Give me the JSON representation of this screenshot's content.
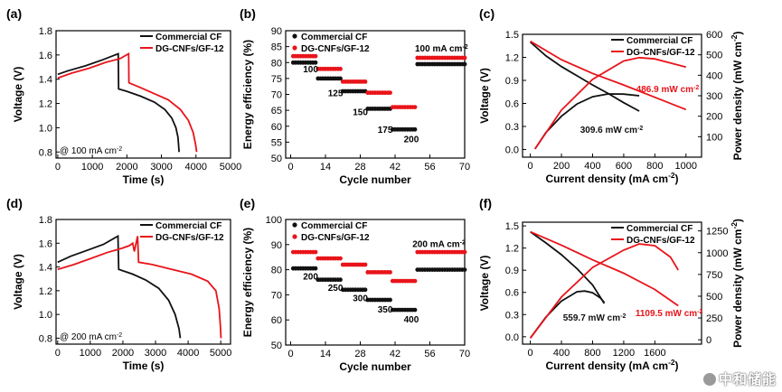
{
  "colors": {
    "black": "#111111",
    "red": "#e8141a"
  },
  "watermark": "中和储能",
  "chart_data": [
    {
      "id": "a",
      "panel_label": "(a)",
      "type": "line",
      "xlabel": "Time (s)",
      "ylabel": "Voltage (V)",
      "xlim": [
        -50,
        5000
      ],
      "ylim": [
        0.75,
        1.8
      ],
      "xticks": [
        0,
        1000,
        2000,
        3000,
        4000,
        5000
      ],
      "yticks": [
        0.8,
        1.0,
        1.2,
        1.4,
        1.6,
        1.8
      ],
      "ytick_labels": [
        "0.8",
        "1.0",
        "1.2",
        "1.4",
        "1.6",
        "1.8"
      ],
      "annotation": "@ 100 mA cm",
      "annotation_sup": "-2",
      "legend": {
        "position": "top-right",
        "entries": [
          "Commercial CF",
          "DG-CNFs/GF-12"
        ]
      },
      "series": [
        {
          "name": "Commercial CF",
          "color": "black",
          "points": [
            [
              0,
              1.44
            ],
            [
              300,
              1.47
            ],
            [
              800,
              1.51
            ],
            [
              1300,
              1.56
            ],
            [
              1750,
              1.61
            ],
            [
              1760,
              1.32
            ],
            [
              2000,
              1.3
            ],
            [
              2400,
              1.26
            ],
            [
              2800,
              1.21
            ],
            [
              3100,
              1.15
            ],
            [
              3300,
              1.08
            ],
            [
              3420,
              1.0
            ],
            [
              3480,
              0.92
            ],
            [
              3510,
              0.8
            ]
          ]
        },
        {
          "name": "DG-CNFs/GF-12",
          "color": "red",
          "points": [
            [
              0,
              1.41
            ],
            [
              400,
              1.45
            ],
            [
              900,
              1.49
            ],
            [
              1400,
              1.54
            ],
            [
              1800,
              1.57
            ],
            [
              2050,
              1.61
            ],
            [
              2060,
              1.37
            ],
            [
              2400,
              1.33
            ],
            [
              2800,
              1.28
            ],
            [
              3200,
              1.23
            ],
            [
              3550,
              1.15
            ],
            [
              3780,
              1.06
            ],
            [
              3920,
              0.96
            ],
            [
              3990,
              0.86
            ],
            [
              4020,
              0.8
            ]
          ]
        }
      ]
    },
    {
      "id": "b",
      "panel_label": "(b)",
      "type": "scatter",
      "xlabel": "Cycle number",
      "ylabel": "Energy efficiency (%)",
      "xlim": [
        -2,
        70
      ],
      "ylim": [
        50,
        90
      ],
      "xticks": [
        0,
        14,
        28,
        42,
        56,
        70
      ],
      "yticks": [
        50,
        55,
        60,
        65,
        70,
        75,
        80,
        85,
        90
      ],
      "legend": {
        "position": "top-left",
        "entries": [
          "Commercial CF",
          "DG-CNFs/GF-12"
        ]
      },
      "annotations": [
        {
          "text": "100",
          "x": 5,
          "y": 77
        },
        {
          "text": "125",
          "x": 15,
          "y": 69.5
        },
        {
          "text": "150",
          "x": 25,
          "y": 63.5
        },
        {
          "text": "175",
          "x": 35,
          "y": 58
        },
        {
          "text": "200",
          "x": 45.5,
          "y": 55
        },
        {
          "text": "100 mA cm",
          "sup": "-2",
          "x": 50,
          "y": 83.5
        }
      ],
      "groups": [
        {
          "x_start": 1,
          "x_end": 10,
          "black": 80.0,
          "red": 82.0
        },
        {
          "x_start": 11,
          "x_end": 20,
          "black": 75.0,
          "red": 78.0
        },
        {
          "x_start": 21,
          "x_end": 30,
          "black": 71.0,
          "red": 74.0
        },
        {
          "x_start": 31,
          "x_end": 40,
          "black": 65.5,
          "red": 70.5
        },
        {
          "x_start": 41,
          "x_end": 50,
          "black": 59.0,
          "red": 66.0
        },
        {
          "x_start": 51,
          "x_end": 70,
          "black": 79.5,
          "red": 81.5
        }
      ]
    },
    {
      "id": "c",
      "panel_label": "(c)",
      "type": "line",
      "xlabel": "Current density (mA cm",
      "xlabel_sup": "-2",
      "xlabel_end": ")",
      "ylabel": "Voltage (V)",
      "y2label": "Power density (mW cm",
      "y2label_sup": "-2",
      "y2label_end": ")",
      "xlim": [
        -50,
        1100
      ],
      "ylim": [
        -0.1,
        1.5
      ],
      "y2lim": [
        0,
        600
      ],
      "xticks": [
        0,
        200,
        400,
        600,
        800,
        1000
      ],
      "yticks": [
        0.0,
        0.3,
        0.6,
        0.9,
        1.2,
        1.5
      ],
      "ytick_labels": [
        "0.0",
        "0.3",
        "0.6",
        "0.9",
        "1.2",
        "1.5"
      ],
      "y2ticks": [
        100,
        200,
        300,
        400,
        500,
        600
      ],
      "legend": {
        "position": "top-right",
        "entries": [
          "Commercial CF",
          "DG-CNFs/GF-12"
        ]
      },
      "annotations": [
        {
          "text": "486.9 mW cm",
          "sup": "-2",
          "color": "red",
          "x": 680,
          "y": 0.75
        },
        {
          "text": "309.6 mW cm",
          "sup": "-2",
          "color": "black",
          "x": 320,
          "y": 0.22
        }
      ],
      "polarization": [
        {
          "name": "Commercial CF",
          "color": "black",
          "points": [
            [
              0,
              1.4
            ],
            [
              100,
              1.22
            ],
            [
              200,
              1.08
            ],
            [
              300,
              0.96
            ],
            [
              400,
              0.84
            ],
            [
              500,
              0.73
            ],
            [
              600,
              0.61
            ],
            [
              700,
              0.5
            ]
          ]
        },
        {
          "name": "DG-CNFs/GF-12",
          "color": "red",
          "points": [
            [
              0,
              1.41
            ],
            [
              200,
              1.17
            ],
            [
              400,
              0.99
            ],
            [
              600,
              0.84
            ],
            [
              800,
              0.68
            ],
            [
              1000,
              0.52
            ]
          ]
        }
      ],
      "power": [
        {
          "name": "Commercial CF",
          "color": "black",
          "axis": "y2",
          "points": [
            [
              30,
              40
            ],
            [
              100,
              120
            ],
            [
              200,
              200
            ],
            [
              300,
              260
            ],
            [
              400,
              295
            ],
            [
              500,
              309
            ],
            [
              600,
              308
            ],
            [
              700,
              300
            ]
          ]
        },
        {
          "name": "DG-CNFs/GF-12",
          "color": "red",
          "axis": "y2",
          "points": [
            [
              30,
              40
            ],
            [
              200,
              230
            ],
            [
              400,
              380
            ],
            [
              600,
              470
            ],
            [
              700,
              486
            ],
            [
              800,
              480
            ],
            [
              900,
              460
            ],
            [
              1000,
              440
            ]
          ]
        }
      ]
    },
    {
      "id": "d",
      "panel_label": "(d)",
      "type": "line",
      "xlabel": "Time (s)",
      "ylabel": "Voltage (V)",
      "xlim": [
        -50,
        5300
      ],
      "ylim": [
        0.75,
        1.8
      ],
      "xticks": [
        0,
        1000,
        2000,
        3000,
        4000,
        5000
      ],
      "yticks": [
        0.8,
        1.0,
        1.2,
        1.4,
        1.6,
        1.8
      ],
      "ytick_labels": [
        "0.8",
        "1.0",
        "1.2",
        "1.4",
        "1.6",
        "1.8"
      ],
      "annotation": "@ 200 mA cm",
      "annotation_sup": "-2",
      "legend": {
        "position": "top-right",
        "entries": [
          "Commercial CF",
          "DG-CNFs/GF-12"
        ]
      },
      "series": [
        {
          "name": "Commercial CF",
          "color": "black",
          "points": [
            [
              0,
              1.44
            ],
            [
              400,
              1.49
            ],
            [
              900,
              1.54
            ],
            [
              1400,
              1.59
            ],
            [
              1850,
              1.66
            ],
            [
              1870,
              1.38
            ],
            [
              2300,
              1.34
            ],
            [
              2700,
              1.29
            ],
            [
              3100,
              1.22
            ],
            [
              3400,
              1.12
            ],
            [
              3600,
              1.0
            ],
            [
              3720,
              0.88
            ],
            [
              3760,
              0.8
            ]
          ]
        },
        {
          "name": "DG-CNFs/GF-12",
          "color": "red",
          "points": [
            [
              0,
              1.38
            ],
            [
              500,
              1.42
            ],
            [
              1000,
              1.47
            ],
            [
              1500,
              1.52
            ],
            [
              2000,
              1.56
            ],
            [
              2200,
              1.58
            ],
            [
              2300,
              1.6
            ],
            [
              2350,
              1.53
            ],
            [
              2450,
              1.66
            ],
            [
              2480,
              1.44
            ],
            [
              2900,
              1.42
            ],
            [
              3500,
              1.38
            ],
            [
              4100,
              1.34
            ],
            [
              4600,
              1.28
            ],
            [
              4850,
              1.2
            ],
            [
              4950,
              1.05
            ],
            [
              4990,
              0.9
            ],
            [
              5010,
              0.8
            ]
          ]
        }
      ]
    },
    {
      "id": "e",
      "panel_label": "(e)",
      "type": "scatter",
      "xlabel": "Cycle number",
      "ylabel": "Energy efficiency (%)",
      "xlim": [
        -2,
        70
      ],
      "ylim": [
        50,
        100
      ],
      "xticks": [
        0,
        14,
        28,
        42,
        56,
        70
      ],
      "yticks": [
        50,
        60,
        70,
        80,
        90,
        100
      ],
      "legend": {
        "position": "top-left",
        "entries": [
          "Commercial CF",
          "DG-CNFs/GF-12"
        ]
      },
      "annotations": [
        {
          "text": "200",
          "x": 5,
          "y": 76
        },
        {
          "text": "250",
          "x": 15,
          "y": 71.5
        },
        {
          "text": "300",
          "x": 25,
          "y": 67.5
        },
        {
          "text": "350",
          "x": 35,
          "y": 63
        },
        {
          "text": "400",
          "x": 45.5,
          "y": 59
        },
        {
          "text": "200 mA cm",
          "sup": "-2",
          "x": 49,
          "y": 89
        }
      ],
      "groups": [
        {
          "x_start": 1,
          "x_end": 10,
          "black": 80.5,
          "red": 87.0
        },
        {
          "x_start": 11,
          "x_end": 20,
          "black": 76.0,
          "red": 84.5
        },
        {
          "x_start": 21,
          "x_end": 30,
          "black": 72.0,
          "red": 82.0
        },
        {
          "x_start": 31,
          "x_end": 40,
          "black": 68.0,
          "red": 79.0
        },
        {
          "x_start": 41,
          "x_end": 50,
          "black": 64.0,
          "red": 75.5
        },
        {
          "x_start": 51,
          "x_end": 70,
          "black": 80.0,
          "red": 87.0
        }
      ]
    },
    {
      "id": "f",
      "panel_label": "(f)",
      "type": "line",
      "xlabel": "Current density (mA cm",
      "xlabel_sup": "-2",
      "xlabel_end": ")",
      "ylabel": "Voltage (V)",
      "y2label": "Power density (mW cm",
      "y2label_sup": "-2",
      "y2label_end": ")",
      "xlim": [
        -100,
        2200
      ],
      "ylim": [
        -0.1,
        1.55
      ],
      "y2lim": [
        -50,
        1350
      ],
      "xticks": [
        0,
        400,
        800,
        1200,
        1600
      ],
      "yticks": [
        0.0,
        0.3,
        0.6,
        0.9,
        1.2,
        1.5
      ],
      "ytick_labels": [
        "0.0",
        "0.3",
        "0.6",
        "0.9",
        "1.2",
        "1.5"
      ],
      "y2ticks": [
        0,
        250,
        500,
        750,
        1000,
        1250
      ],
      "legend": {
        "position": "top-right",
        "entries": [
          "Commercial CF",
          "DG-CNFs/GF-12"
        ]
      },
      "annotations": [
        {
          "text": "1109.5 mW cm",
          "sup": "-2",
          "color": "red",
          "x": 1350,
          "y": 0.28
        },
        {
          "text": "559.7 mW cm",
          "sup": "-2",
          "color": "black",
          "x": 420,
          "y": 0.22
        }
      ],
      "polarization": [
        {
          "name": "Commercial CF",
          "color": "black",
          "points": [
            [
              0,
              1.42
            ],
            [
              200,
              1.27
            ],
            [
              400,
              1.11
            ],
            [
              600,
              0.92
            ],
            [
              800,
              0.7
            ],
            [
              950,
              0.45
            ]
          ]
        },
        {
          "name": "DG-CNFs/GF-12",
          "color": "red",
          "points": [
            [
              0,
              1.42
            ],
            [
              400,
              1.24
            ],
            [
              800,
              1.04
            ],
            [
              1200,
              0.86
            ],
            [
              1600,
              0.64
            ],
            [
              1900,
              0.42
            ]
          ]
        }
      ],
      "power": [
        {
          "name": "Commercial CF",
          "color": "black",
          "axis": "y2",
          "points": [
            [
              0,
              20
            ],
            [
              200,
              260
            ],
            [
              400,
              445
            ],
            [
              600,
              551
            ],
            [
              700,
              560
            ],
            [
              800,
              540
            ],
            [
              900,
              480
            ],
            [
              950,
              430
            ]
          ]
        },
        {
          "name": "DG-CNFs/GF-12",
          "color": "red",
          "axis": "y2",
          "points": [
            [
              0,
              20
            ],
            [
              400,
              490
            ],
            [
              800,
              830
            ],
            [
              1200,
              1030
            ],
            [
              1400,
              1100
            ],
            [
              1600,
              1080
            ],
            [
              1800,
              950
            ],
            [
              1900,
              800
            ]
          ]
        }
      ]
    }
  ]
}
